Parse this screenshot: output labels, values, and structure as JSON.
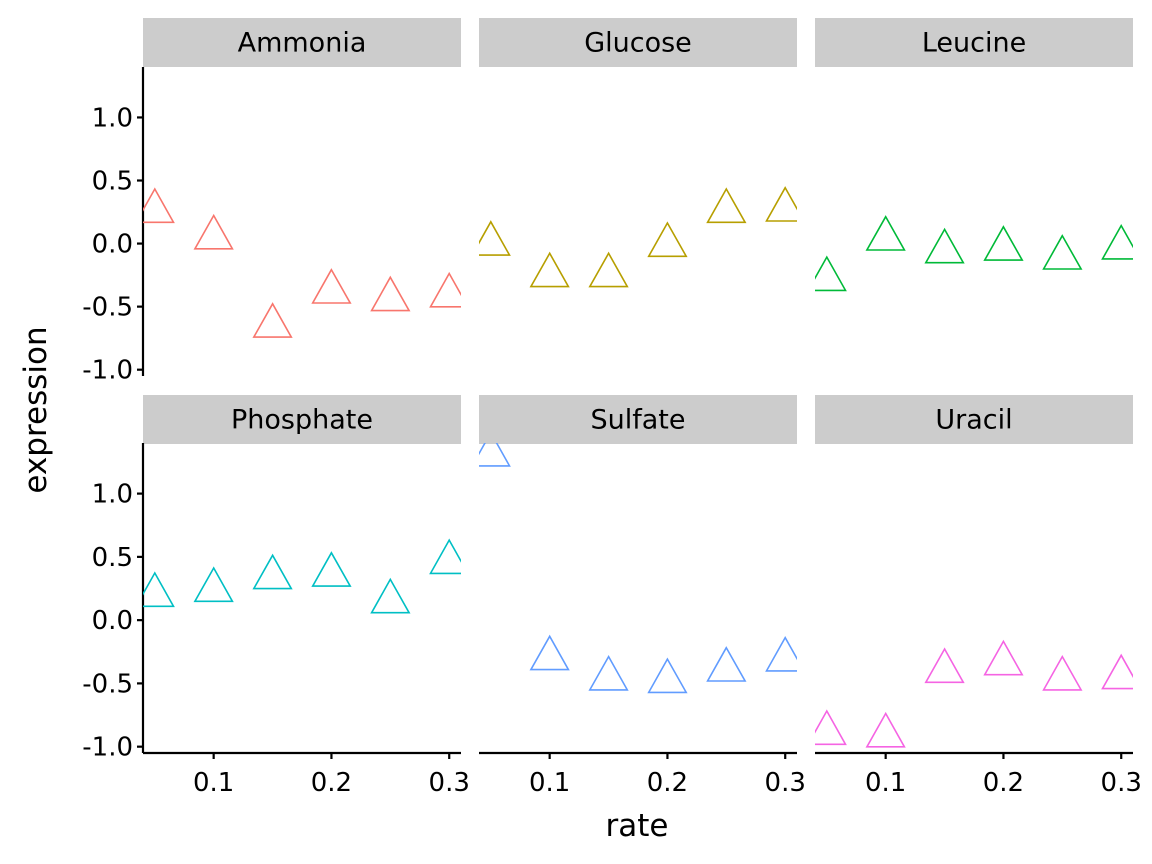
{
  "chart_data": {
    "type": "scatter",
    "facet_layout": "2 rows x 3 columns",
    "marker": "open triangle",
    "xlabel": "rate",
    "ylabel": "expression",
    "x_ticks": [
      0.1,
      0.2,
      0.3
    ],
    "x_tick_labels": [
      "0.1",
      "0.2",
      "0.3"
    ],
    "xlim": [
      0.04,
      0.31
    ],
    "y_ticks": [
      1.0,
      0.5,
      0.0,
      -0.5,
      -1.0
    ],
    "y_tick_labels": [
      "1.0",
      "0.5",
      "0.0",
      "-0.5",
      "-1.0"
    ],
    "ylim": [
      -1.05,
      1.4
    ],
    "grid": false,
    "legend": "none",
    "facets": [
      {
        "name": "Ammonia",
        "color": "#F8766D",
        "x": [
          0.05,
          0.1,
          0.15,
          0.2,
          0.25,
          0.3
        ],
        "y": [
          0.29,
          0.08,
          -0.62,
          -0.35,
          -0.41,
          -0.38
        ]
      },
      {
        "name": "Glucose",
        "color": "#B79F00",
        "x": [
          0.05,
          0.1,
          0.15,
          0.2,
          0.25,
          0.3
        ],
        "y": [
          0.03,
          -0.22,
          -0.22,
          0.02,
          0.29,
          0.3
        ]
      },
      {
        "name": "Leucine",
        "color": "#00BA38",
        "x": [
          0.05,
          0.1,
          0.15,
          0.2,
          0.25,
          0.3
        ],
        "y": [
          -0.25,
          0.07,
          -0.03,
          -0.01,
          -0.08,
          0.0
        ]
      },
      {
        "name": "Phosphate",
        "color": "#00BFC4",
        "x": [
          0.05,
          0.1,
          0.15,
          0.2,
          0.25,
          0.3
        ],
        "y": [
          0.23,
          0.27,
          0.37,
          0.39,
          0.18,
          0.49
        ]
      },
      {
        "name": "Sulfate",
        "color": "#619CFF",
        "x": [
          0.05,
          0.1,
          0.15,
          0.2,
          0.25,
          0.3
        ],
        "y": [
          1.34,
          -0.27,
          -0.43,
          -0.45,
          -0.36,
          -0.28
        ]
      },
      {
        "name": "Uracil",
        "color": "#F564E3",
        "x": [
          0.05,
          0.1,
          0.15,
          0.2,
          0.25,
          0.3
        ],
        "y": [
          -0.86,
          -0.88,
          -0.37,
          -0.31,
          -0.43,
          -0.42
        ]
      }
    ]
  }
}
